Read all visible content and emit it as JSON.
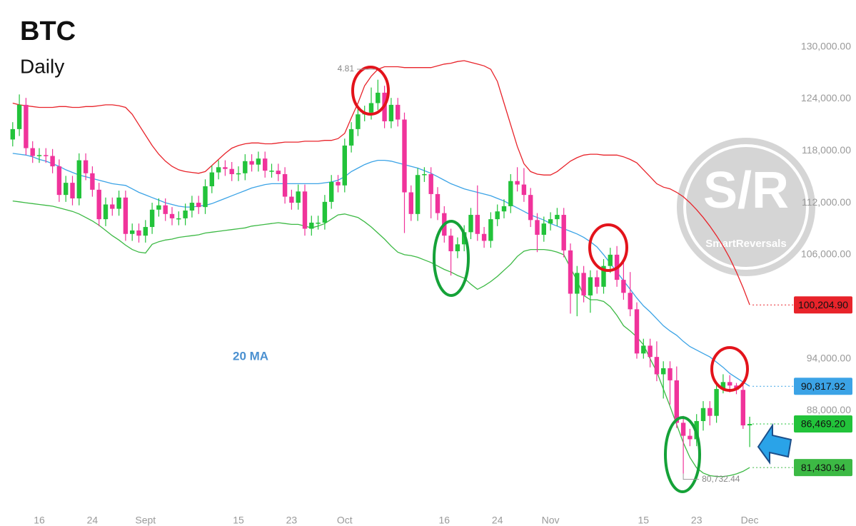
{
  "chart_data": {
    "type": "candlestick",
    "title": "BTC",
    "subtitle": "Daily",
    "categories": [
      null,
      null,
      null,
      null,
      "16",
      null,
      null,
      null,
      null,
      null,
      null,
      null,
      "24",
      null,
      null,
      null,
      null,
      null,
      null,
      null,
      "Sept",
      null,
      null,
      null,
      null,
      null,
      null,
      null,
      null,
      null,
      null,
      null,
      null,
      null,
      "15",
      null,
      null,
      null,
      null,
      null,
      null,
      null,
      "23",
      null,
      null,
      null,
      null,
      null,
      null,
      null,
      "Oct",
      null,
      null,
      null,
      null,
      null,
      null,
      null,
      null,
      null,
      null,
      null,
      null,
      null,
      null,
      "16",
      null,
      null,
      null,
      null,
      null,
      null,
      null,
      "24",
      null,
      null,
      null,
      null,
      null,
      null,
      null,
      "Nov",
      null,
      null,
      null,
      null,
      null,
      null,
      null,
      null,
      null,
      null,
      null,
      null,
      null,
      "15",
      null,
      null,
      null,
      null,
      null,
      null,
      null,
      "23",
      null,
      null,
      null,
      null,
      null,
      null,
      null,
      "Dec"
    ],
    "open": [
      119300,
      120500,
      123300,
      118300,
      117400,
      117500,
      117400,
      116200,
      112900,
      114300,
      112500,
      116900,
      115400,
      113500,
      110100,
      111800,
      111300,
      112600,
      108400,
      108800,
      108200,
      109200,
      111200,
      111700,
      110700,
      110200,
      110200,
      111100,
      112000,
      111500,
      113900,
      115500,
      116100,
      115900,
      115300,
      115400,
      116800,
      116400,
      117100,
      115700,
      115700,
      115300,
      112700,
      112000,
      113300,
      109000,
      109700,
      109700,
      112100,
      114400,
      114000,
      118600,
      120500,
      122200,
      122400,
      123500,
      124700,
      121400,
      123300,
      121600,
      113200,
      110700,
      115200,
      115300,
      113000,
      110800,
      108200,
      106400,
      107200,
      108600,
      110600,
      108400,
      107600,
      110100,
      111000,
      111600,
      114500,
      114100,
      112900,
      110000,
      108300,
      109600,
      110100,
      110600,
      106500,
      101500,
      103900,
      101300,
      103400,
      102300,
      104700,
      106000,
      103100,
      101600,
      99700,
      94600,
      95500,
      94200,
      92200,
      92900,
      91500,
      86600,
      85100,
      84700,
      86800,
      88300,
      87400,
      90500,
      91300,
      90900,
      90400,
      86300
    ],
    "high": [
      121300,
      124500,
      124100,
      119100,
      118300,
      118300,
      118200,
      117000,
      115100,
      115100,
      117700,
      117700,
      116200,
      114300,
      112600,
      112600,
      113400,
      113400,
      109600,
      109600,
      110000,
      112000,
      112500,
      112500,
      111500,
      111000,
      111900,
      112800,
      112800,
      114700,
      116300,
      116900,
      116900,
      116700,
      116200,
      117600,
      117600,
      117900,
      117900,
      116500,
      116500,
      116100,
      113500,
      114100,
      114100,
      110500,
      110500,
      112900,
      115200,
      115200,
      119400,
      121300,
      123000,
      123200,
      125300,
      126200,
      125500,
      124100,
      124100,
      122400,
      114000,
      116000,
      116100,
      116100,
      113800,
      111600,
      109000,
      108000,
      109400,
      111400,
      114000,
      109200,
      110900,
      111800,
      112400,
      115300,
      116100,
      116000,
      113700,
      110800,
      110400,
      110900,
      111400,
      111400,
      107300,
      104700,
      104700,
      104200,
      104200,
      105500,
      106800,
      107000,
      105500,
      104000,
      100500,
      96300,
      96300,
      96000,
      93700,
      93700,
      93100,
      87400,
      85900,
      87600,
      89100,
      89100,
      91300,
      92200,
      92100,
      91200,
      91000,
      87300
    ],
    "low": [
      118500,
      119700,
      117500,
      116600,
      116600,
      116600,
      115400,
      112100,
      112100,
      111700,
      111700,
      114600,
      112700,
      109300,
      109300,
      110500,
      110500,
      107600,
      107600,
      107400,
      107400,
      108400,
      110400,
      109900,
      109400,
      109400,
      109400,
      110300,
      110700,
      110700,
      113100,
      114700,
      115100,
      114500,
      114500,
      114600,
      115600,
      115600,
      114900,
      114900,
      114500,
      111900,
      111200,
      111200,
      108200,
      108200,
      108900,
      108900,
      111300,
      113200,
      113200,
      117800,
      119700,
      121400,
      121600,
      122700,
      120600,
      120600,
      120800,
      108500,
      109900,
      109900,
      114400,
      110200,
      110000,
      107400,
      103600,
      105600,
      106400,
      107800,
      107600,
      106800,
      106800,
      109300,
      110200,
      110800,
      113300,
      112100,
      109200,
      106300,
      107500,
      108800,
      109300,
      105700,
      99200,
      98900,
      100500,
      99300,
      101500,
      101500,
      103900,
      102300,
      100800,
      98900,
      94000,
      94000,
      93000,
      91400,
      89400,
      88700,
      86000,
      80732.44,
      83900,
      83900,
      85700,
      86300,
      86600,
      90000,
      90100,
      89900,
      85900,
      83800
    ],
    "close": [
      120500,
      123300,
      118300,
      117400,
      117500,
      117400,
      116200,
      112900,
      114300,
      112500,
      116900,
      115400,
      113500,
      110100,
      111800,
      111300,
      112600,
      108400,
      108800,
      108200,
      109200,
      111200,
      111700,
      110700,
      110200,
      110200,
      111100,
      112000,
      111500,
      113900,
      115500,
      116100,
      115900,
      115300,
      115400,
      116800,
      116400,
      117100,
      115700,
      115700,
      115300,
      112700,
      112000,
      113300,
      109000,
      109700,
      109700,
      112100,
      114400,
      114000,
      118600,
      120500,
      122200,
      122400,
      123500,
      124700,
      121400,
      123300,
      121600,
      113200,
      110700,
      115200,
      115300,
      113000,
      110800,
      108200,
      106400,
      107200,
      108600,
      110600,
      108400,
      107600,
      110100,
      111000,
      111600,
      114500,
      114100,
      112900,
      110000,
      108300,
      109600,
      110100,
      110600,
      106500,
      101500,
      103900,
      101300,
      103400,
      102300,
      104700,
      106000,
      103100,
      101600,
      99700,
      94600,
      95500,
      94200,
      92200,
      92900,
      91500,
      86600,
      85100,
      84700,
      86800,
      88300,
      87400,
      90500,
      91300,
      90900,
      90400,
      86300,
      86469.2
    ],
    "close_label": "86,469.20",
    "up_color": "#22c33a",
    "down_color": "#f0339b",
    "series": [
      {
        "color": "#e8232a",
        "last_label": "100,204.90",
        "values": [
          123500,
          123300,
          123200,
          123100,
          123000,
          123000,
          123000,
          123100,
          123100,
          123000,
          123000,
          123100,
          123100,
          123200,
          123300,
          123300,
          123200,
          123000,
          122200,
          121000,
          119800,
          118600,
          117600,
          116800,
          116200,
          115800,
          115600,
          115500,
          115400,
          115600,
          116300,
          117000,
          117700,
          118300,
          118600,
          118800,
          118900,
          118900,
          118800,
          118800,
          118900,
          119000,
          119000,
          119000,
          119100,
          119100,
          119100,
          119200,
          119200,
          119400,
          120000,
          121800,
          123500,
          125500,
          126600,
          127400,
          127700,
          127700,
          127700,
          127600,
          127600,
          127600,
          127600,
          127600,
          127800,
          128000,
          128100,
          128300,
          128400,
          128200,
          128000,
          127800,
          127400,
          126000,
          123500,
          121000,
          118500,
          116500,
          115600,
          115300,
          115200,
          115200,
          115600,
          116200,
          116800,
          117200,
          117500,
          117600,
          117600,
          117500,
          117500,
          117500,
          117300,
          117000,
          116600,
          115800,
          115000,
          114200,
          113800,
          113600,
          113200,
          112700,
          112000,
          111200,
          110300,
          109300,
          108200,
          107000,
          105600,
          104000,
          102200,
          100204.9
        ]
      },
      {
        "name": "20 MA",
        "color": "#3ba3e6",
        "last_label": "90,817.92",
        "values": [
          117700,
          117600,
          117500,
          117300,
          117000,
          116800,
          116500,
          116200,
          115800,
          115500,
          115200,
          115000,
          114800,
          114600,
          114400,
          114200,
          114100,
          114000,
          113600,
          113200,
          112900,
          112600,
          112300,
          112000,
          111800,
          111600,
          111500,
          111500,
          111600,
          111700,
          111900,
          112200,
          112500,
          112800,
          113100,
          113400,
          113700,
          113900,
          114100,
          114200,
          114200,
          114200,
          114200,
          114200,
          114200,
          114200,
          114200,
          114300,
          114400,
          114600,
          115000,
          115600,
          116000,
          116400,
          116700,
          116900,
          116900,
          116800,
          116600,
          116400,
          116200,
          116000,
          115700,
          115400,
          115000,
          114600,
          114200,
          113900,
          113600,
          113400,
          113200,
          113000,
          112800,
          112500,
          112200,
          111800,
          111400,
          111000,
          110600,
          110300,
          110000,
          109600,
          109300,
          109000,
          108700,
          108400,
          108000,
          107500,
          106900,
          106000,
          105000,
          104000,
          103000,
          102000,
          101000,
          100100,
          99400,
          98600,
          97800,
          97200,
          96700,
          96000,
          95400,
          95000,
          94600,
          94200,
          93600,
          93000,
          92300,
          91800,
          91300,
          90817.92
        ]
      },
      {
        "color": "#3cb944",
        "last_label": "81,430.94",
        "values": [
          112200,
          112100,
          112000,
          111900,
          111800,
          111700,
          111600,
          111400,
          111200,
          111000,
          110700,
          110300,
          109900,
          109400,
          108800,
          108200,
          107700,
          107100,
          106600,
          106300,
          106200,
          107200,
          107500,
          107700,
          107800,
          108000,
          108100,
          108200,
          108300,
          108500,
          108600,
          108700,
          108800,
          108900,
          109000,
          109100,
          109300,
          109400,
          109500,
          109600,
          109700,
          109600,
          109500,
          109500,
          109300,
          109100,
          109300,
          109600,
          110100,
          110600,
          110700,
          110500,
          110300,
          109800,
          109200,
          108500,
          107800,
          107000,
          106300,
          106000,
          105900,
          105700,
          105400,
          105100,
          104700,
          104300,
          104000,
          103600,
          103300,
          102600,
          102000,
          102400,
          102900,
          103500,
          104200,
          104900,
          105800,
          106400,
          106600,
          106600,
          106600,
          106500,
          106300,
          106000,
          104500,
          103000,
          101300,
          100800,
          100800,
          100600,
          100000,
          99000,
          97800,
          97200,
          96500,
          95600,
          94000,
          92500,
          90500,
          88500,
          86400,
          84300,
          82600,
          81400,
          80800,
          80500,
          80400,
          80400,
          80500,
          80700,
          81000,
          81430.94
        ]
      }
    ],
    "annotations": [
      {
        "text": "4.81"
      },
      {
        "text": "80,732.44"
      }
    ],
    "watermark": {
      "logo": "S/R",
      "text": "SmartReversals"
    },
    "ylim": [
      76500,
      135400
    ],
    "yticks": [
      {
        "value": 88000,
        "label": "88,000.00"
      },
      {
        "value": 94000,
        "label": "94,000.00"
      },
      {
        "value": 106000,
        "label": "106,000.00"
      },
      {
        "value": 112000,
        "label": "112,000.00"
      },
      {
        "value": 118000,
        "label": "118,000.00"
      },
      {
        "value": 124000,
        "label": "124,000.00"
      },
      {
        "value": 130000,
        "label": "130,000.00"
      }
    ]
  }
}
